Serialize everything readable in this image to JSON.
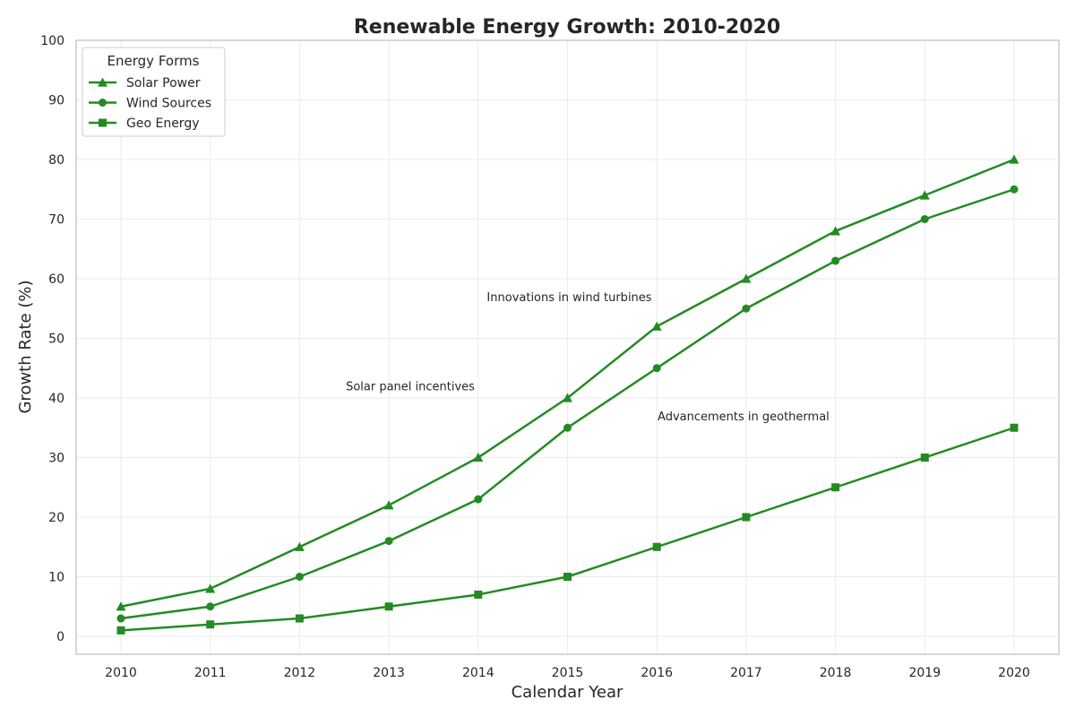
{
  "chart_data": {
    "type": "line",
    "title": "Renewable Energy Growth: 2010-2020",
    "xlabel": "Calendar Year",
    "ylabel": "Growth Rate (%)",
    "x": [
      2010,
      2011,
      2012,
      2013,
      2014,
      2015,
      2016,
      2017,
      2018,
      2019,
      2020
    ],
    "ylim": [
      0,
      100
    ],
    "yticks": [
      0,
      10,
      20,
      30,
      40,
      50,
      60,
      70,
      80,
      90,
      100
    ],
    "grid": true,
    "legend": {
      "title": "Energy Forms",
      "placement": "top-left"
    },
    "line_color": "#228B22",
    "series": [
      {
        "name": "Solar Power",
        "marker": "triangle",
        "values": [
          5,
          8,
          15,
          22,
          30,
          40,
          52,
          60,
          68,
          74,
          80
        ]
      },
      {
        "name": "Wind Sources",
        "marker": "circle",
        "values": [
          3,
          5,
          10,
          16,
          23,
          35,
          45,
          55,
          63,
          70,
          75
        ]
      },
      {
        "name": "Geo Energy",
        "marker": "square",
        "values": [
          1,
          2,
          3,
          5,
          7,
          10,
          15,
          20,
          25,
          30,
          35
        ]
      }
    ],
    "annotations": [
      {
        "text": "Solar panel incentives",
        "x": 2013.24,
        "y": 42
      },
      {
        "text": "Innovations in wind turbines",
        "x": 2015.02,
        "y": 57
      },
      {
        "text": "Advancements in geothermal",
        "x": 2016.97,
        "y": 37
      }
    ]
  }
}
